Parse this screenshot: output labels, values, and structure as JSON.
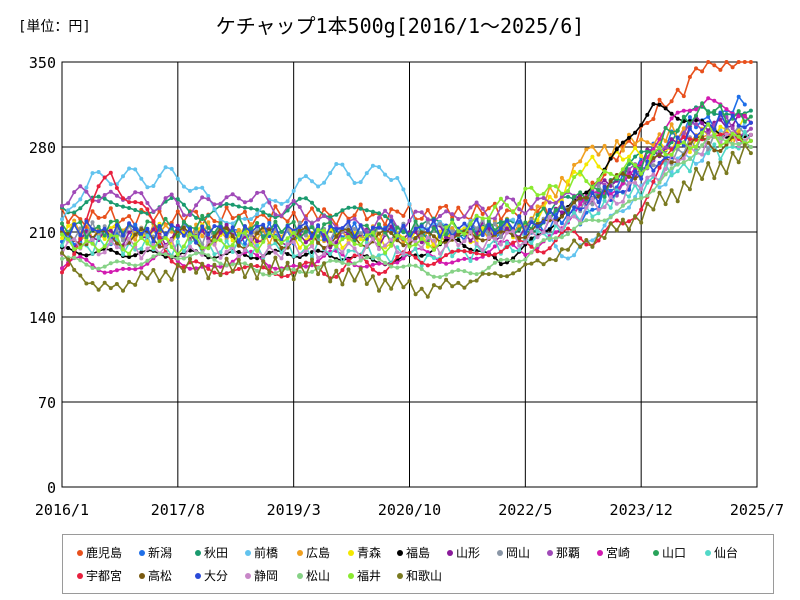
{
  "chart_data": {
    "type": "line",
    "title": "ケチャップ1本500g[2016/1～2025/6]",
    "unit_label": "[単位：円]",
    "xlabel": "",
    "ylabel": "",
    "x_tick_labels": [
      "2016/1",
      "2017/8",
      "2019/3",
      "2020/10",
      "2022/5",
      "2023/12",
      "2025/7"
    ],
    "x_tick_months": [
      0,
      19,
      38,
      57,
      76,
      95,
      114
    ],
    "y_ticks": [
      "0",
      "70",
      "140",
      "210",
      "280",
      "350"
    ],
    "y_tick_values": [
      0,
      70,
      140,
      210,
      280,
      350
    ],
    "ylim": [
      0,
      350
    ],
    "xlim_months": [
      0,
      114
    ],
    "grid": true,
    "legend_position": "bottom",
    "series": [
      {
        "name": "鹿児島",
        "color": "#e8501c",
        "points": [
          [
            0,
            222
          ],
          [
            20,
            222
          ],
          [
            40,
            223
          ],
          [
            58,
            225
          ],
          [
            76,
            228
          ],
          [
            84,
            230
          ],
          [
            95,
            295
          ],
          [
            106,
            350
          ],
          [
            113,
            350
          ]
        ]
      },
      {
        "name": "新潟",
        "color": "#1f6fe8",
        "points": [
          [
            0,
            205
          ],
          [
            20,
            210
          ],
          [
            40,
            208
          ],
          [
            60,
            210
          ],
          [
            76,
            212
          ],
          [
            86,
            225
          ],
          [
            100,
            290
          ],
          [
            112,
            315
          ]
        ]
      },
      {
        "name": "秋田",
        "color": "#1a9a6e",
        "points": [
          [
            0,
            235
          ],
          [
            15,
            230
          ],
          [
            30,
            228
          ],
          [
            46,
            230
          ],
          [
            60,
            212
          ],
          [
            76,
            215
          ],
          [
            90,
            250
          ],
          [
            105,
            310
          ],
          [
            113,
            310
          ]
        ]
      },
      {
        "name": "前橋",
        "color": "#62c3ee",
        "points": [
          [
            0,
            218
          ],
          [
            5,
            255
          ],
          [
            20,
            255
          ],
          [
            28,
            215
          ],
          [
            43,
            258
          ],
          [
            55,
            258
          ],
          [
            58,
            215
          ],
          [
            76,
            212
          ],
          [
            84,
            190
          ],
          [
            94,
            240
          ],
          [
            112,
            300
          ]
        ]
      },
      {
        "name": "広島",
        "color": "#f0a020",
        "points": [
          [
            0,
            212
          ],
          [
            20,
            210
          ],
          [
            40,
            208
          ],
          [
            60,
            205
          ],
          [
            76,
            215
          ],
          [
            86,
            275
          ],
          [
            100,
            290
          ],
          [
            113,
            290
          ]
        ]
      },
      {
        "name": "青森",
        "color": "#f3e800",
        "points": [
          [
            0,
            210
          ],
          [
            20,
            208
          ],
          [
            40,
            205
          ],
          [
            60,
            205
          ],
          [
            76,
            212
          ],
          [
            86,
            265
          ],
          [
            100,
            280
          ],
          [
            113,
            300
          ]
        ]
      },
      {
        "name": "福島",
        "color": "#000000",
        "points": [
          [
            0,
            195
          ],
          [
            20,
            198
          ],
          [
            40,
            195
          ],
          [
            55,
            182
          ],
          [
            65,
            198
          ],
          [
            72,
            178
          ],
          [
            78,
            200
          ],
          [
            86,
            240
          ],
          [
            97,
            315
          ],
          [
            113,
            290
          ]
        ]
      },
      {
        "name": "山形",
        "color": "#8a1a9a",
        "points": [
          [
            0,
            205
          ],
          [
            20,
            208
          ],
          [
            40,
            205
          ],
          [
            60,
            208
          ],
          [
            76,
            210
          ],
          [
            90,
            250
          ],
          [
            105,
            300
          ],
          [
            113,
            300
          ]
        ]
      },
      {
        "name": "岡山",
        "color": "#8a96a6",
        "points": [
          [
            0,
            210
          ],
          [
            20,
            208
          ],
          [
            40,
            210
          ],
          [
            60,
            212
          ],
          [
            76,
            215
          ],
          [
            90,
            245
          ],
          [
            105,
            285
          ],
          [
            113,
            295
          ]
        ]
      },
      {
        "name": "那覇",
        "color": "#a04ab8",
        "points": [
          [
            0,
            240
          ],
          [
            10,
            240
          ],
          [
            20,
            230
          ],
          [
            30,
            240
          ],
          [
            46,
            215
          ],
          [
            60,
            222
          ],
          [
            76,
            232
          ],
          [
            90,
            245
          ],
          [
            105,
            300
          ],
          [
            113,
            295
          ]
        ]
      },
      {
        "name": "宮崎",
        "color": "#d21ab0",
        "points": [
          [
            0,
            180
          ],
          [
            20,
            185
          ],
          [
            40,
            185
          ],
          [
            60,
            188
          ],
          [
            76,
            195
          ],
          [
            90,
            245
          ],
          [
            106,
            325
          ],
          [
            113,
            300
          ]
        ]
      },
      {
        "name": "山口",
        "color": "#29a35a",
        "points": [
          [
            0,
            212
          ],
          [
            20,
            215
          ],
          [
            40,
            212
          ],
          [
            60,
            210
          ],
          [
            76,
            215
          ],
          [
            92,
            255
          ],
          [
            104,
            310
          ],
          [
            113,
            305
          ]
        ]
      },
      {
        "name": "仙台",
        "color": "#52d8c8",
        "points": [
          [
            0,
            200
          ],
          [
            20,
            198
          ],
          [
            40,
            195
          ],
          [
            60,
            190
          ],
          [
            76,
            200
          ],
          [
            92,
            240
          ],
          [
            106,
            275
          ],
          [
            113,
            285
          ]
        ]
      },
      {
        "name": "宇都宮",
        "color": "#e8203e",
        "points": [
          [
            0,
            178
          ],
          [
            8,
            260
          ],
          [
            20,
            180
          ],
          [
            40,
            178
          ],
          [
            60,
            188
          ],
          [
            76,
            198
          ],
          [
            92,
            212
          ],
          [
            102,
            290
          ],
          [
            113,
            285
          ]
        ]
      },
      {
        "name": "高松",
        "color": "#7a5a10",
        "points": [
          [
            0,
            205
          ],
          [
            20,
            205
          ],
          [
            40,
            205
          ],
          [
            60,
            205
          ],
          [
            76,
            208
          ],
          [
            92,
            255
          ],
          [
            106,
            285
          ],
          [
            113,
            280
          ]
        ]
      },
      {
        "name": "大分",
        "color": "#2a4ad8",
        "points": [
          [
            0,
            212
          ],
          [
            20,
            210
          ],
          [
            40,
            212
          ],
          [
            60,
            212
          ],
          [
            76,
            215
          ],
          [
            92,
            245
          ],
          [
            106,
            300
          ],
          [
            113,
            300
          ]
        ]
      },
      {
        "name": "静岡",
        "color": "#c887c8",
        "points": [
          [
            0,
            200
          ],
          [
            20,
            195
          ],
          [
            40,
            195
          ],
          [
            60,
            200
          ],
          [
            76,
            205
          ],
          [
            92,
            240
          ],
          [
            106,
            285
          ],
          [
            113,
            290
          ]
        ]
      },
      {
        "name": "松山",
        "color": "#86d286",
        "points": [
          [
            0,
            190
          ],
          [
            20,
            185
          ],
          [
            40,
            182
          ],
          [
            60,
            180
          ],
          [
            76,
            185
          ],
          [
            92,
            235
          ],
          [
            106,
            280
          ],
          [
            113,
            280
          ]
        ]
      },
      {
        "name": "福井",
        "color": "#8aea30",
        "points": [
          [
            0,
            200
          ],
          [
            20,
            200
          ],
          [
            40,
            205
          ],
          [
            60,
            200
          ],
          [
            76,
            240
          ],
          [
            92,
            260
          ],
          [
            106,
            290
          ],
          [
            113,
            285
          ]
        ]
      },
      {
        "name": "和歌山",
        "color": "#7a7a20",
        "points": [
          [
            0,
            190
          ],
          [
            6,
            162
          ],
          [
            20,
            180
          ],
          [
            40,
            180
          ],
          [
            60,
            162
          ],
          [
            76,
            180
          ],
          [
            92,
            215
          ],
          [
            106,
            260
          ],
          [
            113,
            275
          ]
        ]
      }
    ]
  }
}
